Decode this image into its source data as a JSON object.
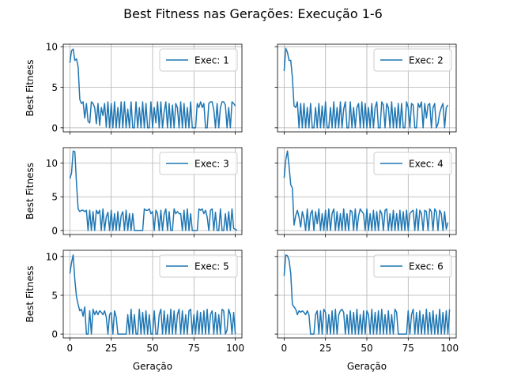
{
  "chart_data": {
    "type": "line",
    "title": "Best Fitness nas Gerações: Execução 1-6",
    "grid": true,
    "legend": "top-right",
    "panels": [
      {
        "xlabel": "",
        "ylabel": "Best Fitness",
        "xlim": [
          -4,
          104
        ],
        "ylim": [
          -0.5,
          10.3
        ],
        "yticks": [
          0,
          5,
          10
        ],
        "xticks": [
          0,
          25,
          50,
          75,
          100
        ],
        "series": [
          {
            "name": "Exec: 1",
            "color": "#1f77b4",
            "values": [
              8,
              9.5,
              9.7,
              8.3,
              8.5,
              7.5,
              3.5,
              3,
              3.2,
              1.2,
              3,
              0.8,
              0.6,
              3.2,
              3,
              2.5,
              0.5,
              3,
              0.3,
              2.5,
              1.5,
              3,
              0.1,
              3.2,
              0,
              3,
              0,
              3.2,
              0,
              2.5,
              0,
              3.2,
              0,
              3.2,
              0,
              2.3,
              0,
              3.2,
              0,
              0,
              3.2,
              0,
              2.5,
              0,
              3.2,
              0,
              3,
              0,
              0,
              3.2,
              0,
              2.5,
              0.6,
              3.2,
              0,
              3.2,
              0,
              2,
              3.2,
              0,
              3,
              0,
              2.8,
              0,
              3,
              2.5,
              0,
              3.2,
              0,
              3,
              0,
              2.5,
              0,
              3.2,
              0,
              0,
              0,
              3,
              2.5,
              3.2,
              2.5,
              3,
              0,
              0,
              3,
              3.2,
              3.2,
              2.2,
              0,
              3,
              0,
              2.5,
              3.2,
              3.2,
              2.8,
              0,
              2.5,
              0,
              3.2,
              3,
              2.7
            ]
          }
        ]
      },
      {
        "xlabel": "",
        "ylabel": "",
        "xlim": [
          -4,
          104
        ],
        "ylim": [
          -0.5,
          10.3
        ],
        "yticks": [
          0,
          5,
          10
        ],
        "xticks": [
          0,
          25,
          50,
          75,
          100
        ],
        "series": [
          {
            "name": "Exec: 2",
            "color": "#1f77b4",
            "values": [
              7,
              9.8,
              9.3,
              8.3,
              8.3,
              6.2,
              2.7,
              2.5,
              3.2,
              0,
              3,
              0,
              3,
              0,
              2.5,
              0,
              3,
              0,
              0,
              2.5,
              0,
              3,
              0,
              2.7,
              0,
              3.2,
              0,
              0,
              2.5,
              0,
              3.2,
              0,
              2.5,
              0,
              3.2,
              0,
              2.3,
              3.2,
              0,
              0,
              3.2,
              0,
              2.5,
              0,
              2.5,
              3,
              0,
              3.2,
              0,
              3,
              0,
              2.5,
              0,
              3,
              0,
              2.5,
              3.2,
              0,
              0,
              3.2,
              2.8,
              0,
              3,
              2.5,
              0,
              3.2,
              0,
              2.5,
              0,
              3,
              0,
              3,
              0,
              0,
              3.2,
              2.5,
              0,
              3,
              2.8,
              0,
              0,
              3,
              2.5,
              3.2,
              0,
              3,
              1.2,
              2.8,
              3,
              0,
              2.5,
              3,
              0,
              0.5,
              1.8,
              2.5,
              3,
              0,
              2.5,
              2.8
            ]
          }
        ]
      },
      {
        "xlabel": "",
        "ylabel": "Best Fitness",
        "xlim": [
          -4,
          104
        ],
        "ylim": [
          -0.6,
          12.3
        ],
        "yticks": [
          0,
          5,
          10
        ],
        "xticks": [
          0,
          25,
          50,
          75,
          100
        ],
        "series": [
          {
            "name": "Exec: 3",
            "color": "#1f77b4",
            "values": [
              7.7,
              8.5,
              11.8,
              11.7,
              7,
              3.2,
              2.8,
              3,
              3,
              2.8,
              3,
              0,
              3,
              0,
              2.8,
              0,
              3,
              2.5,
              3,
              0,
              3.2,
              0,
              2,
              2.7,
              0,
              3,
              0,
              2.5,
              0,
              2.8,
              0,
              2.2,
              2.8,
              0,
              3,
              0,
              2.5,
              0,
              2.5,
              0,
              0,
              0,
              0,
              0,
              0,
              3.2,
              3,
              3,
              3.2,
              2.5,
              2.8,
              0,
              3,
              2.5,
              0,
              3,
              0,
              2.5,
              3.2,
              0,
              2.8,
              0,
              0,
              3.2,
              2.5,
              2.8,
              2.5,
              2.5,
              0,
              3,
              0,
              3.2,
              0,
              2.5,
              0,
              0,
              0,
              0,
              3.2,
              3,
              3.2,
              2.5,
              3,
              2,
              0,
              3,
              3.2,
              0,
              2.7,
              0,
              0,
              3.2,
              0,
              0,
              2.5,
              0,
              2.8,
              0,
              3.2,
              0.3,
              0.2,
              0
            ]
          }
        ]
      },
      {
        "xlabel": "",
        "ylabel": "",
        "xlim": [
          -4,
          104
        ],
        "ylim": [
          -0.6,
          12.3
        ],
        "yticks": [
          0,
          5,
          10
        ],
        "xticks": [
          0,
          25,
          50,
          75,
          100
        ],
        "series": [
          {
            "name": "Exec: 4",
            "color": "#1f77b4",
            "values": [
              7.8,
              10.5,
              11.8,
              9.5,
              6.8,
              6.3,
              0.8,
              2.2,
              3,
              2,
              0.5,
              2.8,
              1.8,
              0,
              3.2,
              0,
              2.5,
              3,
              0,
              2.8,
              1,
              3.2,
              0,
              2.5,
              0,
              3,
              0,
              3.2,
              0,
              2.5,
              3.2,
              0,
              2.8,
              0,
              2.5,
              0,
              3.2,
              0,
              2.5,
              0,
              3,
              2.8,
              0,
              3.2,
              0,
              2.2,
              3.2,
              2.8,
              2.5,
              0,
              3.2,
              0,
              2.5,
              0,
              3,
              0,
              2.8,
              0,
              3,
              2.5,
              0,
              3,
              3.2,
              0,
              2.5,
              0,
              3,
              0,
              2.5,
              0,
              3,
              0,
              2.8,
              0,
              3,
              0,
              2.5,
              2.8,
              3,
              0,
              3.2,
              0,
              3,
              2.5,
              0,
              3,
              2.8,
              0,
              3.2,
              2.8,
              0,
              3.2,
              2.8,
              0,
              3,
              2.5,
              0,
              2.8,
              0.2,
              1.2
            ]
          }
        ]
      },
      {
        "xlabel": "Geração",
        "ylabel": "Best Fitness",
        "xlim": [
          -4,
          104
        ],
        "ylim": [
          -0.5,
          10.8
        ],
        "yticks": [
          0,
          5,
          10
        ],
        "xticks": [
          0,
          25,
          50,
          75,
          100
        ],
        "series": [
          {
            "name": "Exec: 5",
            "color": "#1f77b4",
            "values": [
              7.8,
              9.2,
              10.2,
              7,
              4.8,
              3.8,
              3,
              3.2,
              2.3,
              3.5,
              0,
              0,
              3,
              0,
              3.2,
              2.5,
              3,
              2.5,
              3,
              2.8,
              2.5,
              3,
              2.2,
              0,
              2.5,
              2.8,
              0,
              3,
              2.2,
              0,
              0,
              0,
              0,
              0,
              0,
              2.5,
              0,
              3.2,
              0,
              2.5,
              0,
              0,
              3.2,
              0,
              2.8,
              0,
              3,
              0,
              2.5,
              0,
              0,
              3,
              0,
              0,
              2.5,
              3.2,
              0,
              3,
              0,
              2.5,
              0,
              3.2,
              0,
              3,
              0,
              2.5,
              3.2,
              0,
              3,
              0,
              2.5,
              0,
              3,
              3.2,
              0,
              2.5,
              0,
              3,
              0,
              2.8,
              0,
              3,
              0,
              3.2,
              0,
              2.5,
              3,
              0,
              2.8,
              0,
              2.5,
              0,
              3.2,
              3,
              0,
              0.5,
              3.2,
              2.5,
              0,
              2.8,
              0
            ]
          }
        ]
      },
      {
        "xlabel": "Geração",
        "ylabel": "",
        "xlim": [
          -4,
          104
        ],
        "ylim": [
          -0.5,
          10.8
        ],
        "yticks": [
          0,
          5,
          10
        ],
        "xticks": [
          0,
          25,
          50,
          75,
          100
        ],
        "series": [
          {
            "name": "Exec: 6",
            "color": "#1f77b4",
            "values": [
              7.5,
              10.2,
              10.1,
              9.5,
              7.8,
              3.8,
              3.5,
              3.2,
              2.5,
              3,
              2.8,
              3,
              2.8,
              2.5,
              3,
              2.5,
              0,
              0,
              0,
              2.5,
              3,
              0,
              3,
              0,
              3.2,
              2.8,
              0,
              2.5,
              0,
              3,
              0,
              3.2,
              0,
              2.5,
              3,
              3.2,
              2.8,
              0,
              2.5,
              0,
              3,
              0,
              2.8,
              0,
              3.2,
              0,
              2.5,
              0,
              3,
              0,
              3,
              2.5,
              0,
              3.2,
              0,
              2.8,
              0,
              3,
              0,
              3.2,
              0,
              2.5,
              0,
              3,
              0,
              2.5,
              0,
              3.2,
              2.8,
              0,
              0,
              0,
              0,
              0,
              0,
              3,
              0,
              2.5,
              3.2,
              0,
              2.8,
              0,
              3,
              0,
              2.5,
              0,
              3.2,
              0,
              2.8,
              0,
              3,
              0,
              2.5,
              0,
              3.2,
              0,
              2.8,
              0,
              3,
              0,
              3.2
            ]
          }
        ]
      }
    ]
  }
}
